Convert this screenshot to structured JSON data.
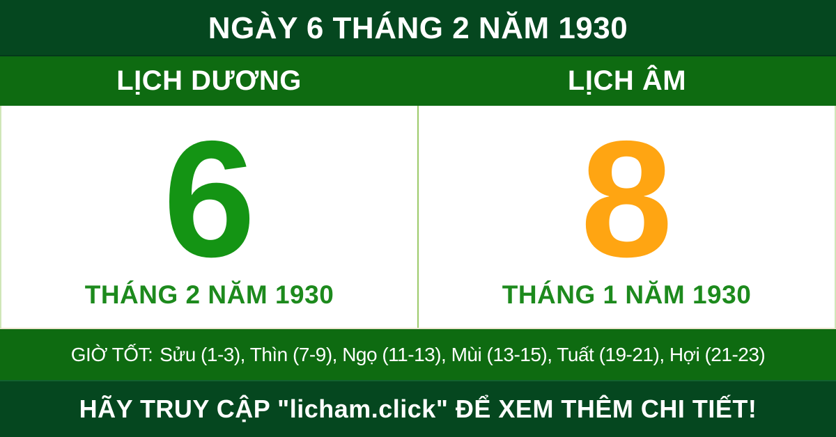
{
  "header": {
    "title": "NGÀY 6 THÁNG 2 NĂM 1930"
  },
  "calendar": {
    "solar": {
      "header": "LỊCH DƯƠNG",
      "day": "6",
      "month_year": "THÁNG 2 NĂM 1930"
    },
    "lunar": {
      "header": "LỊCH ÂM",
      "day": "8",
      "month_year": "THÁNG 1 NĂM 1930"
    }
  },
  "good_hours": {
    "label": "GIỜ TỐT:",
    "hours": "Sửu (1-3), Thìn (7-9), Ngọ (11-13), Mùi (13-15), Tuất (19-21), Hợi (21-23)"
  },
  "footer": {
    "text": "HÃY TRUY CẬP \"licham.click\" ĐỂ XEM THÊM CHI TIẾT!"
  },
  "colors": {
    "dark_green": "#05471f",
    "medium_green": "#0e6b11",
    "solar_day_green": "#149414",
    "label_green": "#1d8a1d",
    "lunar_day_orange": "#ffa512",
    "divider_light_green": "#9ccb6b",
    "white": "#ffffff"
  }
}
